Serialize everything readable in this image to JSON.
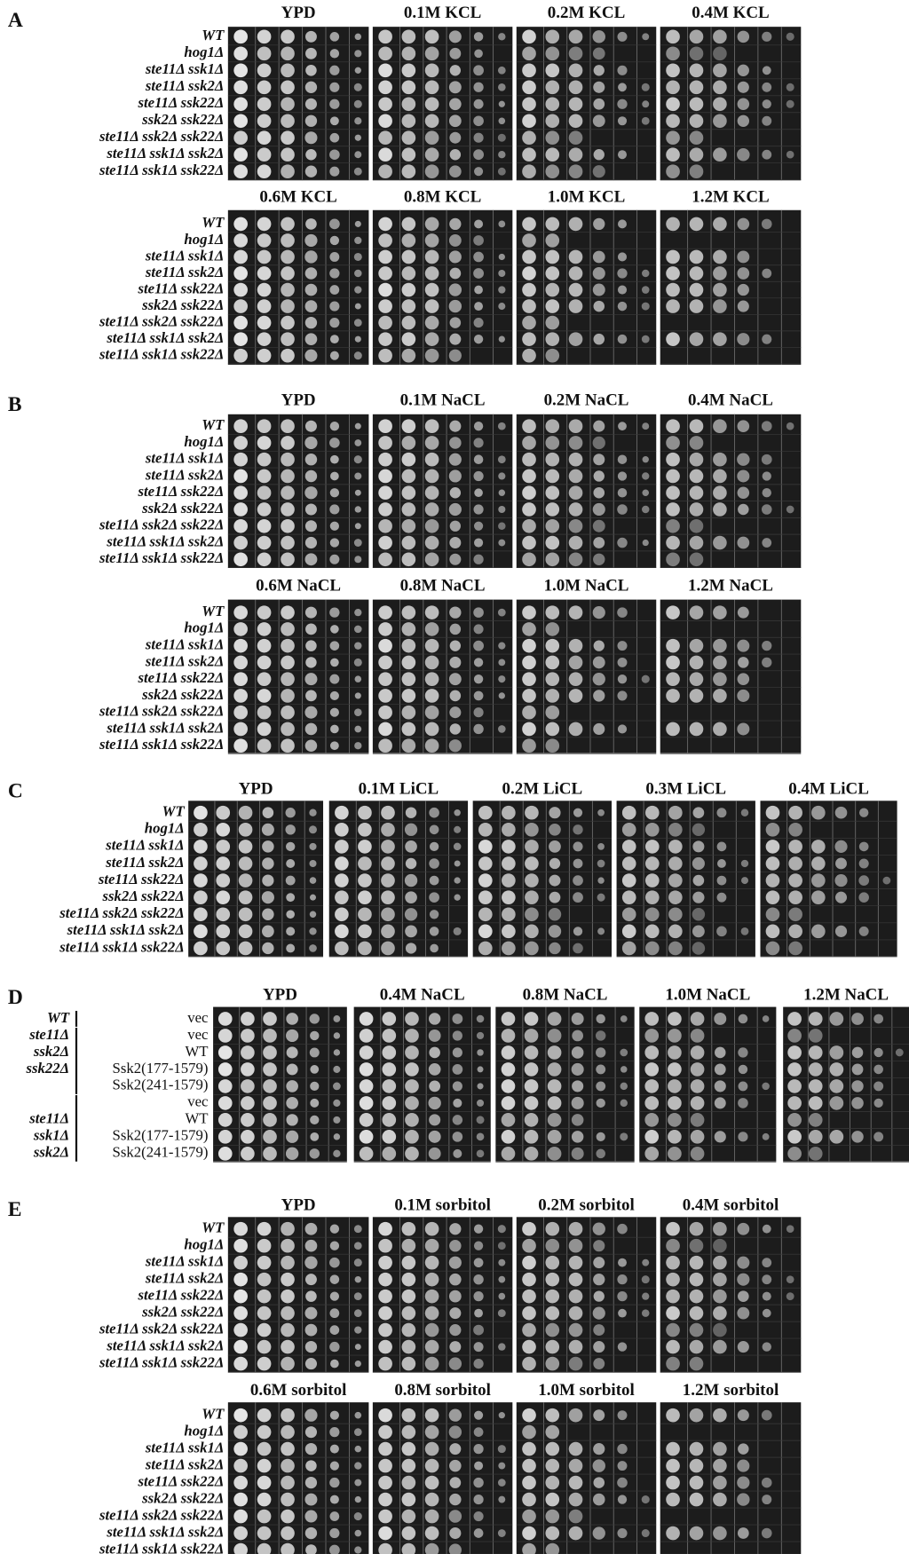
{
  "panels": [
    {
      "letter": "A",
      "rows": [
        {
          "conditions": [
            "YPD",
            "0.1M KCL",
            "0.2M KCL",
            "0.4M KCL"
          ],
          "strains": [
            "WT",
            "hog1Δ",
            "ste11Δ ssk1Δ",
            "ste11Δ ssk2Δ",
            "ste11Δ ssk22Δ",
            "ssk2Δ ssk22Δ",
            "ste11Δ ssk2Δ ssk22Δ",
            "ste11Δ ssk1Δ ssk2Δ",
            "ste11Δ ssk1Δ ssk22Δ"
          ]
        },
        {
          "conditions": [
            "0.6M KCL",
            "0.8M KCL",
            "1.0M KCL",
            "1.2M KCL"
          ],
          "strains": [
            "WT",
            "hog1Δ",
            "ste11Δ ssk1Δ",
            "ste11Δ ssk2Δ",
            "ste11Δ ssk22Δ",
            "ssk2Δ ssk22Δ",
            "ste11Δ ssk2Δ ssk22Δ",
            "ste11Δ ssk1Δ ssk2Δ",
            "ste11Δ ssk1Δ ssk22Δ"
          ]
        }
      ]
    },
    {
      "letter": "B",
      "rows": [
        {
          "conditions": [
            "YPD",
            "0.1M NaCL",
            "0.2M NaCL",
            "0.4M NaCL"
          ],
          "strains": [
            "WT",
            "hog1Δ",
            "ste11Δ ssk1Δ",
            "ste11Δ ssk2Δ",
            "ste11Δ ssk22Δ",
            "ssk2Δ ssk22Δ",
            "ste11Δ ssk2Δ ssk22Δ",
            "ste11Δ ssk1Δ ssk2Δ",
            "ste11Δ ssk1Δ ssk22Δ"
          ]
        },
        {
          "conditions": [
            "0.6M NaCL",
            "0.8M NaCL",
            "1.0M NaCL",
            "1.2M NaCL"
          ],
          "strains": [
            "WT",
            "hog1Δ",
            "ste11Δ ssk1Δ",
            "ste11Δ ssk2Δ",
            "ste11Δ ssk22Δ",
            "ssk2Δ ssk22Δ",
            "ste11Δ ssk2Δ ssk22Δ",
            "ste11Δ ssk1Δ ssk2Δ",
            "ste11Δ ssk1Δ ssk22Δ"
          ]
        }
      ]
    },
    {
      "letter": "C",
      "rows": [
        {
          "conditions": [
            "YPD",
            "0.1M LiCL",
            "0.2M LiCL",
            "0.3M LiCL",
            "0.4M LiCL"
          ],
          "strains": [
            "WT",
            "hog1Δ",
            "ste11Δ ssk1Δ",
            "ste11Δ ssk2Δ",
            "ste11Δ ssk22Δ",
            "ssk2Δ ssk22Δ",
            "ste11Δ ssk2Δ ssk22Δ",
            "ste11Δ ssk1Δ ssk2Δ",
            "ste11Δ ssk1Δ ssk22Δ"
          ]
        }
      ]
    },
    {
      "letter": "D",
      "rows": [
        {
          "conditions": [
            "YPD",
            "0.4M NaCL",
            "0.8M NaCL",
            "1.0M NaCL",
            "1.2M NaCL"
          ],
          "strains": [
            "vec",
            "vec",
            "WT",
            "Ssk2(177-1579)",
            "Ssk2(241-1579)",
            "vec",
            "WT",
            "Ssk2(177-1579)",
            "Ssk2(241-1579)"
          ],
          "groups": [
            [
              "WT"
            ],
            [
              "ste11Δ",
              "ssk2Δ",
              "ssk22Δ"
            ],
            [
              "ste11Δ",
              "ssk1Δ",
              "ssk2Δ"
            ]
          ]
        }
      ]
    },
    {
      "letter": "E",
      "rows": [
        {
          "conditions": [
            "YPD",
            "0.1M sorbitol",
            "0.2M sorbitol",
            "0.4M sorbitol"
          ],
          "strains": [
            "WT",
            "hog1Δ",
            "ste11Δ ssk1Δ",
            "ste11Δ ssk2Δ",
            "ste11Δ ssk22Δ",
            "ssk2Δ ssk22Δ",
            "ste11Δ ssk2Δ ssk22Δ",
            "ste11Δ ssk1Δ ssk2Δ",
            "ste11Δ ssk1Δ ssk22Δ"
          ]
        },
        {
          "conditions": [
            "0.6M sorbitol",
            "0.8M sorbitol",
            "1.0M sorbitol",
            "1.2M sorbitol"
          ],
          "strains": [
            "WT",
            "hog1Δ",
            "ste11Δ ssk1Δ",
            "ste11Δ ssk2Δ",
            "ste11Δ ssk22Δ",
            "ssk2Δ ssk22Δ",
            "ste11Δ ssk2Δ ssk22Δ",
            "ste11Δ ssk1Δ ssk2Δ",
            "ste11Δ ssk1Δ ssk22Δ"
          ]
        }
      ]
    }
  ]
}
